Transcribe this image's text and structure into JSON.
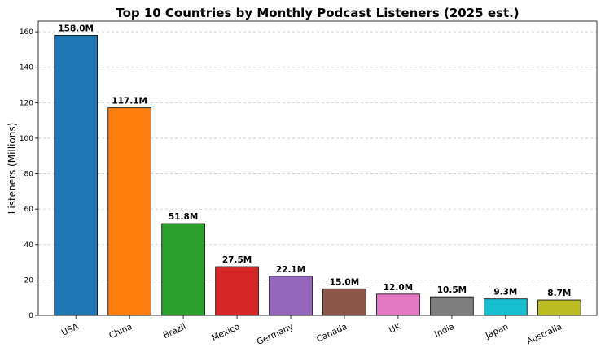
{
  "chart_data": {
    "type": "bar",
    "title": "Top 10 Countries by Monthly Podcast Listeners (2025 est.)",
    "xlabel": "",
    "ylabel": "Listeners (Millions)",
    "ylim": [
      0,
      166
    ],
    "yticks": [
      0,
      20,
      40,
      60,
      80,
      100,
      120,
      140,
      160
    ],
    "grid": "y-dashed",
    "categories": [
      "USA",
      "China",
      "Brazil",
      "Mexico",
      "Germany",
      "Canada",
      "UK",
      "India",
      "Japan",
      "Australia"
    ],
    "values": [
      158.0,
      117.1,
      51.8,
      27.5,
      22.1,
      15.0,
      12.0,
      10.5,
      9.3,
      8.7
    ],
    "data_labels": [
      "158.0M",
      "117.1M",
      "51.8M",
      "27.5M",
      "22.1M",
      "15.0M",
      "12.0M",
      "10.5M",
      "9.3M",
      "8.7M"
    ],
    "colors": [
      "#1f77b4",
      "#ff7f0e",
      "#2ca02c",
      "#d62728",
      "#9467bd",
      "#8c564b",
      "#e377c2",
      "#7f7f7f",
      "#17becf",
      "#bcbd22"
    ]
  }
}
